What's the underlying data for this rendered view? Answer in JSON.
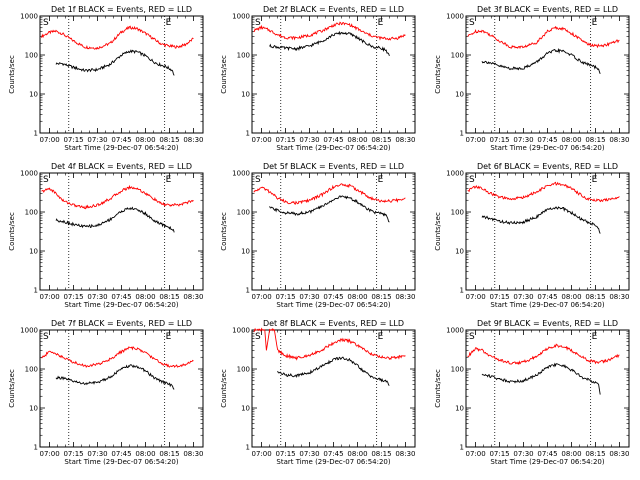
{
  "chart_data": [
    {
      "type": "line",
      "title": "Det 1f BLACK = Events, RED = LLD",
      "xlabel": "Start Time (29-Dec-07 06:54:20)",
      "ylabel": "Counts/sec",
      "yscale": "log",
      "ylim": [
        1,
        1000
      ],
      "x_ticks": [
        "07:00",
        "07:15",
        "07:30",
        "07:45",
        "08:00",
        "08:15",
        "08:30"
      ],
      "y_ticks": [
        "1",
        "10",
        "100",
        "1000"
      ],
      "markers": [
        "S",
        "E"
      ],
      "marker_times": [
        "07:12",
        "08:12"
      ],
      "series": [
        {
          "color": "#ff0000",
          "x": [
            "06:55",
            "07:00",
            "07:04",
            "07:08",
            "07:15",
            "07:22",
            "07:30",
            "07:38",
            "07:45",
            "07:50",
            "07:55",
            "08:00",
            "08:05",
            "08:10",
            "08:15",
            "08:20",
            "08:25",
            "08:30"
          ],
          "y": [
            300,
            380,
            410,
            350,
            230,
            160,
            150,
            200,
            390,
            510,
            470,
            360,
            260,
            190,
            170,
            160,
            185,
            260
          ]
        },
        {
          "color": "#000000",
          "x": [
            "07:04",
            "07:08",
            "07:15",
            "07:22",
            "07:30",
            "07:38",
            "07:45",
            "07:50",
            "07:55",
            "08:00",
            "08:05",
            "08:08",
            "08:12",
            "08:15",
            "08:17",
            "08:18"
          ],
          "y": [
            60,
            60,
            48,
            40,
            42,
            58,
            100,
            125,
            120,
            95,
            68,
            58,
            52,
            45,
            40,
            30
          ]
        }
      ]
    },
    {
      "type": "line",
      "title": "Det 2f BLACK = Events, RED = LLD",
      "xlabel": "Start Time (29-Dec-07 06:54:20)",
      "ylabel": "Counts/sec",
      "yscale": "log",
      "ylim": [
        1,
        1000
      ],
      "x_ticks": [
        "07:00",
        "07:15",
        "07:30",
        "07:45",
        "08:00",
        "08:15",
        "08:30"
      ],
      "y_ticks": [
        "1",
        "10",
        "100",
        "1000"
      ],
      "markers": [
        "S",
        "E"
      ],
      "marker_times": [
        "07:12",
        "08:12"
      ],
      "series": [
        {
          "color": "#ff0000",
          "x": [
            "06:55",
            "07:00",
            "07:05",
            "07:10",
            "07:15",
            "07:22",
            "07:30",
            "07:38",
            "07:45",
            "07:50",
            "07:55",
            "08:00",
            "08:05",
            "08:10",
            "08:15",
            "08:20",
            "08:25",
            "08:30"
          ],
          "y": [
            420,
            510,
            430,
            330,
            280,
            275,
            320,
            420,
            580,
            650,
            600,
            470,
            360,
            300,
            270,
            260,
            270,
            330
          ]
        },
        {
          "color": "#000000",
          "x": [
            "07:05",
            "07:10",
            "07:15",
            "07:22",
            "07:30",
            "07:38",
            "07:45",
            "07:50",
            "07:55",
            "08:00",
            "08:05",
            "08:10",
            "08:15",
            "08:18",
            "08:20"
          ],
          "y": [
            170,
            160,
            150,
            145,
            170,
            230,
            330,
            370,
            350,
            280,
            200,
            160,
            150,
            130,
            95
          ]
        }
      ]
    },
    {
      "type": "line",
      "title": "Det 3f BLACK = Events, RED = LLD",
      "xlabel": "Start Time (29-Dec-07 06:54:20)",
      "ylabel": "Counts/sec",
      "yscale": "log",
      "ylim": [
        1,
        1000
      ],
      "x_ticks": [
        "07:00",
        "07:15",
        "07:30",
        "07:45",
        "08:00",
        "08:15",
        "08:30"
      ],
      "y_ticks": [
        "1",
        "10",
        "100",
        "1000"
      ],
      "markers": [
        "S",
        "E"
      ],
      "marker_times": [
        "07:12",
        "08:12"
      ],
      "series": [
        {
          "color": "#ff0000",
          "x": [
            "06:55",
            "07:00",
            "07:04",
            "07:08",
            "07:15",
            "07:22",
            "07:30",
            "07:38",
            "07:45",
            "07:50",
            "07:55",
            "08:00",
            "08:05",
            "08:10",
            "08:15",
            "08:20",
            "08:25",
            "08:30"
          ],
          "y": [
            300,
            400,
            420,
            350,
            230,
            160,
            160,
            210,
            400,
            500,
            470,
            360,
            260,
            190,
            170,
            175,
            200,
            240
          ]
        },
        {
          "color": "#000000",
          "x": [
            "07:04",
            "07:08",
            "07:15",
            "07:22",
            "07:30",
            "07:38",
            "07:45",
            "07:50",
            "07:55",
            "08:00",
            "08:05",
            "08:08",
            "08:12",
            "08:15",
            "08:17",
            "08:18"
          ],
          "y": [
            68,
            65,
            52,
            45,
            46,
            65,
            110,
            130,
            125,
            100,
            72,
            62,
            55,
            48,
            42,
            33
          ]
        }
      ]
    },
    {
      "type": "line",
      "title": "Det 4f BLACK = Events, RED = LLD",
      "xlabel": "Start Time (29-Dec-07 06:54:20)",
      "ylabel": "Counts/sec",
      "yscale": "log",
      "ylim": [
        1,
        1000
      ],
      "x_ticks": [
        "07:00",
        "07:15",
        "07:30",
        "07:45",
        "08:00",
        "08:15",
        "08:30"
      ],
      "y_ticks": [
        "1",
        "10",
        "100",
        "1000"
      ],
      "markers": [
        "S",
        "E"
      ],
      "marker_times": [
        "07:12",
        "08:12"
      ],
      "series": [
        {
          "color": "#ff0000",
          "x": [
            "06:55",
            "07:00",
            "07:04",
            "07:08",
            "07:15",
            "07:22",
            "07:30",
            "07:38",
            "07:45",
            "07:50",
            "07:55",
            "08:00",
            "08:05",
            "08:10",
            "08:15",
            "08:20",
            "08:25",
            "08:30"
          ],
          "y": [
            330,
            400,
            300,
            200,
            150,
            130,
            150,
            220,
            350,
            430,
            400,
            300,
            220,
            160,
            150,
            150,
            170,
            200
          ]
        },
        {
          "color": "#000000",
          "x": [
            "07:04",
            "07:08",
            "07:15",
            "07:22",
            "07:30",
            "07:38",
            "07:45",
            "07:50",
            "07:55",
            "08:00",
            "08:05",
            "08:08",
            "08:12",
            "08:15",
            "08:17",
            "08:18"
          ],
          "y": [
            62,
            58,
            48,
            42,
            45,
            65,
            105,
            125,
            115,
            90,
            62,
            52,
            45,
            40,
            36,
            30
          ]
        }
      ]
    },
    {
      "type": "line",
      "title": "Det 5f BLACK = Events, RED = LLD",
      "xlabel": "Start Time (29-Dec-07 06:54:20)",
      "ylabel": "Counts/sec",
      "yscale": "log",
      "ylim": [
        1,
        1000
      ],
      "x_ticks": [
        "07:00",
        "07:15",
        "07:30",
        "07:45",
        "08:00",
        "08:15",
        "08:30"
      ],
      "y_ticks": [
        "1",
        "10",
        "100",
        "1000"
      ],
      "markers": [
        "S",
        "E"
      ],
      "marker_times": [
        "07:12",
        "08:12"
      ],
      "series": [
        {
          "color": "#ff0000",
          "x": [
            "06:55",
            "07:00",
            "07:05",
            "07:10",
            "07:15",
            "07:22",
            "07:30",
            "07:38",
            "07:45",
            "07:50",
            "07:55",
            "08:00",
            "08:05",
            "08:10",
            "08:15",
            "08:20",
            "08:25",
            "08:30"
          ],
          "y": [
            320,
            430,
            330,
            230,
            180,
            170,
            200,
            280,
            440,
            500,
            470,
            370,
            270,
            210,
            190,
            190,
            200,
            230
          ]
        },
        {
          "color": "#000000",
          "x": [
            "07:05",
            "07:10",
            "07:15",
            "07:22",
            "07:30",
            "07:38",
            "07:45",
            "07:50",
            "07:55",
            "08:00",
            "08:05",
            "08:10",
            "08:15",
            "08:18",
            "08:20"
          ],
          "y": [
            130,
            110,
            95,
            90,
            100,
            140,
            210,
            250,
            230,
            180,
            130,
            100,
            90,
            80,
            55
          ]
        }
      ]
    },
    {
      "type": "line",
      "title": "Det 6f BLACK = Events, RED = LLD",
      "xlabel": "Start Time (29-Dec-07 06:54:20)",
      "ylabel": "Counts/sec",
      "yscale": "log",
      "ylim": [
        1,
        1000
      ],
      "x_ticks": [
        "07:00",
        "07:15",
        "07:30",
        "07:45",
        "08:00",
        "08:15",
        "08:30"
      ],
      "y_ticks": [
        "1",
        "10",
        "100",
        "1000"
      ],
      "markers": [
        "S",
        "E"
      ],
      "marker_times": [
        "07:12",
        "08:12"
      ],
      "series": [
        {
          "color": "#ff0000",
          "x": [
            "06:55",
            "07:00",
            "07:04",
            "07:08",
            "07:15",
            "07:22",
            "07:30",
            "07:38",
            "07:45",
            "07:50",
            "07:55",
            "08:00",
            "08:05",
            "08:10",
            "08:15",
            "08:20",
            "08:25",
            "08:30"
          ],
          "y": [
            350,
            450,
            400,
            320,
            240,
            210,
            240,
            320,
            470,
            530,
            500,
            400,
            290,
            220,
            200,
            200,
            210,
            250
          ]
        },
        {
          "color": "#000000",
          "x": [
            "07:04",
            "07:08",
            "07:15",
            "07:22",
            "07:30",
            "07:38",
            "07:45",
            "07:50",
            "07:55",
            "08:00",
            "08:05",
            "08:08",
            "08:12",
            "08:15",
            "08:17",
            "08:18"
          ],
          "y": [
            75,
            70,
            58,
            52,
            55,
            75,
            115,
            130,
            120,
            95,
            70,
            60,
            52,
            45,
            40,
            28
          ]
        }
      ]
    },
    {
      "type": "line",
      "title": "Det 7f BLACK = Events, RED = LLD",
      "xlabel": "Start Time (29-Dec-07 06:54:20)",
      "ylabel": "Counts/sec",
      "yscale": "log",
      "ylim": [
        1,
        1000
      ],
      "x_ticks": [
        "07:00",
        "07:15",
        "07:30",
        "07:45",
        "08:00",
        "08:15",
        "08:30"
      ],
      "y_ticks": [
        "1",
        "10",
        "100",
        "1000"
      ],
      "markers": [
        "S",
        "E"
      ],
      "marker_times": [
        "07:12",
        "08:12"
      ],
      "series": [
        {
          "color": "#ff0000",
          "x": [
            "06:55",
            "07:00",
            "07:04",
            "07:08",
            "07:15",
            "07:22",
            "07:30",
            "07:38",
            "07:45",
            "07:50",
            "07:55",
            "08:00",
            "08:05",
            "08:10",
            "08:15",
            "08:20",
            "08:25",
            "08:30"
          ],
          "y": [
            190,
            280,
            250,
            200,
            150,
            120,
            130,
            180,
            280,
            350,
            330,
            260,
            190,
            140,
            120,
            120,
            130,
            160
          ]
        },
        {
          "color": "#000000",
          "x": [
            "07:04",
            "07:08",
            "07:15",
            "07:22",
            "07:30",
            "07:38",
            "07:45",
            "07:50",
            "07:55",
            "08:00",
            "08:05",
            "08:08",
            "08:12",
            "08:15",
            "08:17",
            "08:18"
          ],
          "y": [
            60,
            58,
            48,
            42,
            45,
            63,
            100,
            120,
            115,
            90,
            62,
            52,
            45,
            40,
            36,
            30
          ]
        }
      ]
    },
    {
      "type": "line",
      "title": "Det 8f BLACK = Events, RED = LLD",
      "xlabel": "Start Time (29-Dec-07 06:54:20)",
      "ylabel": "Counts/sec",
      "yscale": "log",
      "ylim": [
        1,
        1000
      ],
      "x_ticks": [
        "07:00",
        "07:15",
        "07:30",
        "07:45",
        "08:00",
        "08:15",
        "08:30"
      ],
      "y_ticks": [
        "1",
        "10",
        "100",
        "1000"
      ],
      "markers": [
        "S",
        "E"
      ],
      "marker_times": [
        "07:12",
        "08:12"
      ],
      "series": [
        {
          "color": "#ff0000",
          "x": [
            "06:55",
            "07:00",
            "07:02",
            "07:03",
            "07:05",
            "07:08",
            "07:10",
            "07:15",
            "07:22",
            "07:30",
            "07:38",
            "07:45",
            "07:50",
            "07:55",
            "08:00",
            "08:05",
            "08:10",
            "08:15",
            "08:20",
            "08:25",
            "08:30"
          ],
          "y": [
            1000,
            1000,
            1000,
            300,
            1000,
            1000,
            300,
            220,
            190,
            230,
            310,
            470,
            560,
            520,
            400,
            300,
            230,
            200,
            190,
            200,
            220
          ]
        },
        {
          "color": "#000000",
          "x": [
            "07:10",
            "07:15",
            "07:22",
            "07:30",
            "07:38",
            "07:45",
            "07:50",
            "07:55",
            "08:00",
            "08:05",
            "08:10",
            "08:15",
            "08:18",
            "08:20"
          ],
          "y": [
            85,
            70,
            68,
            80,
            120,
            175,
            190,
            170,
            120,
            80,
            60,
            52,
            48,
            38
          ]
        }
      ]
    },
    {
      "type": "line",
      "title": "Det 9f BLACK = Events, RED = LLD",
      "xlabel": "Start Time (29-Dec-07 06:54:20)",
      "ylabel": "Counts/sec",
      "yscale": "log",
      "ylim": [
        1,
        1000
      ],
      "x_ticks": [
        "07:00",
        "07:15",
        "07:30",
        "07:45",
        "08:00",
        "08:15",
        "08:30"
      ],
      "y_ticks": [
        "1",
        "10",
        "100",
        "1000"
      ],
      "markers": [
        "S",
        "E"
      ],
      "marker_times": [
        "07:12",
        "08:12"
      ],
      "series": [
        {
          "color": "#ff0000",
          "x": [
            "06:55",
            "07:00",
            "07:04",
            "07:08",
            "07:15",
            "07:22",
            "07:30",
            "07:38",
            "07:45",
            "07:50",
            "07:55",
            "08:00",
            "08:05",
            "08:10",
            "08:15",
            "08:20",
            "08:25",
            "08:30"
          ],
          "y": [
            210,
            330,
            300,
            230,
            170,
            140,
            150,
            210,
            330,
            400,
            380,
            300,
            220,
            170,
            150,
            155,
            180,
            230
          ]
        },
        {
          "color": "#000000",
          "x": [
            "07:04",
            "07:08",
            "07:15",
            "07:22",
            "07:30",
            "07:38",
            "07:45",
            "07:50",
            "07:55",
            "08:00",
            "08:05",
            "08:08",
            "08:12",
            "08:15",
            "08:17",
            "08:18"
          ],
          "y": [
            72,
            68,
            55,
            48,
            50,
            70,
            110,
            130,
            120,
            95,
            68,
            58,
            50,
            45,
            42,
            22
          ]
        }
      ]
    }
  ]
}
